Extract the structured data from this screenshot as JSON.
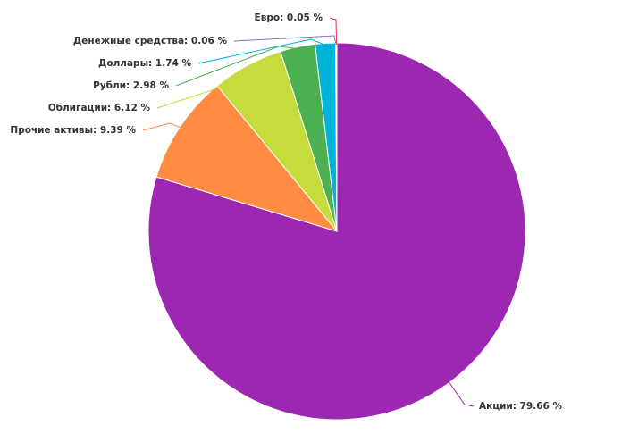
{
  "chart_data": {
    "type": "pie",
    "labels": [
      "Акции: 79.66 %",
      "Прочие активы: 9.39 %",
      "Облигации: 6.12 %",
      "Рубли: 2.98 %",
      "Доллары: 1.74 %",
      "Денежные средства: 0.06 %",
      "Евро: 0.05 %"
    ],
    "values": [
      79.66,
      9.39,
      6.12,
      2.98,
      1.74,
      0.06,
      0.05
    ],
    "colors": [
      "#9c27b0",
      "#ff8c42",
      "#c6dc3c",
      "#4caf50",
      "#00b4d8",
      "#7e6fd6",
      "#e53935"
    ]
  }
}
